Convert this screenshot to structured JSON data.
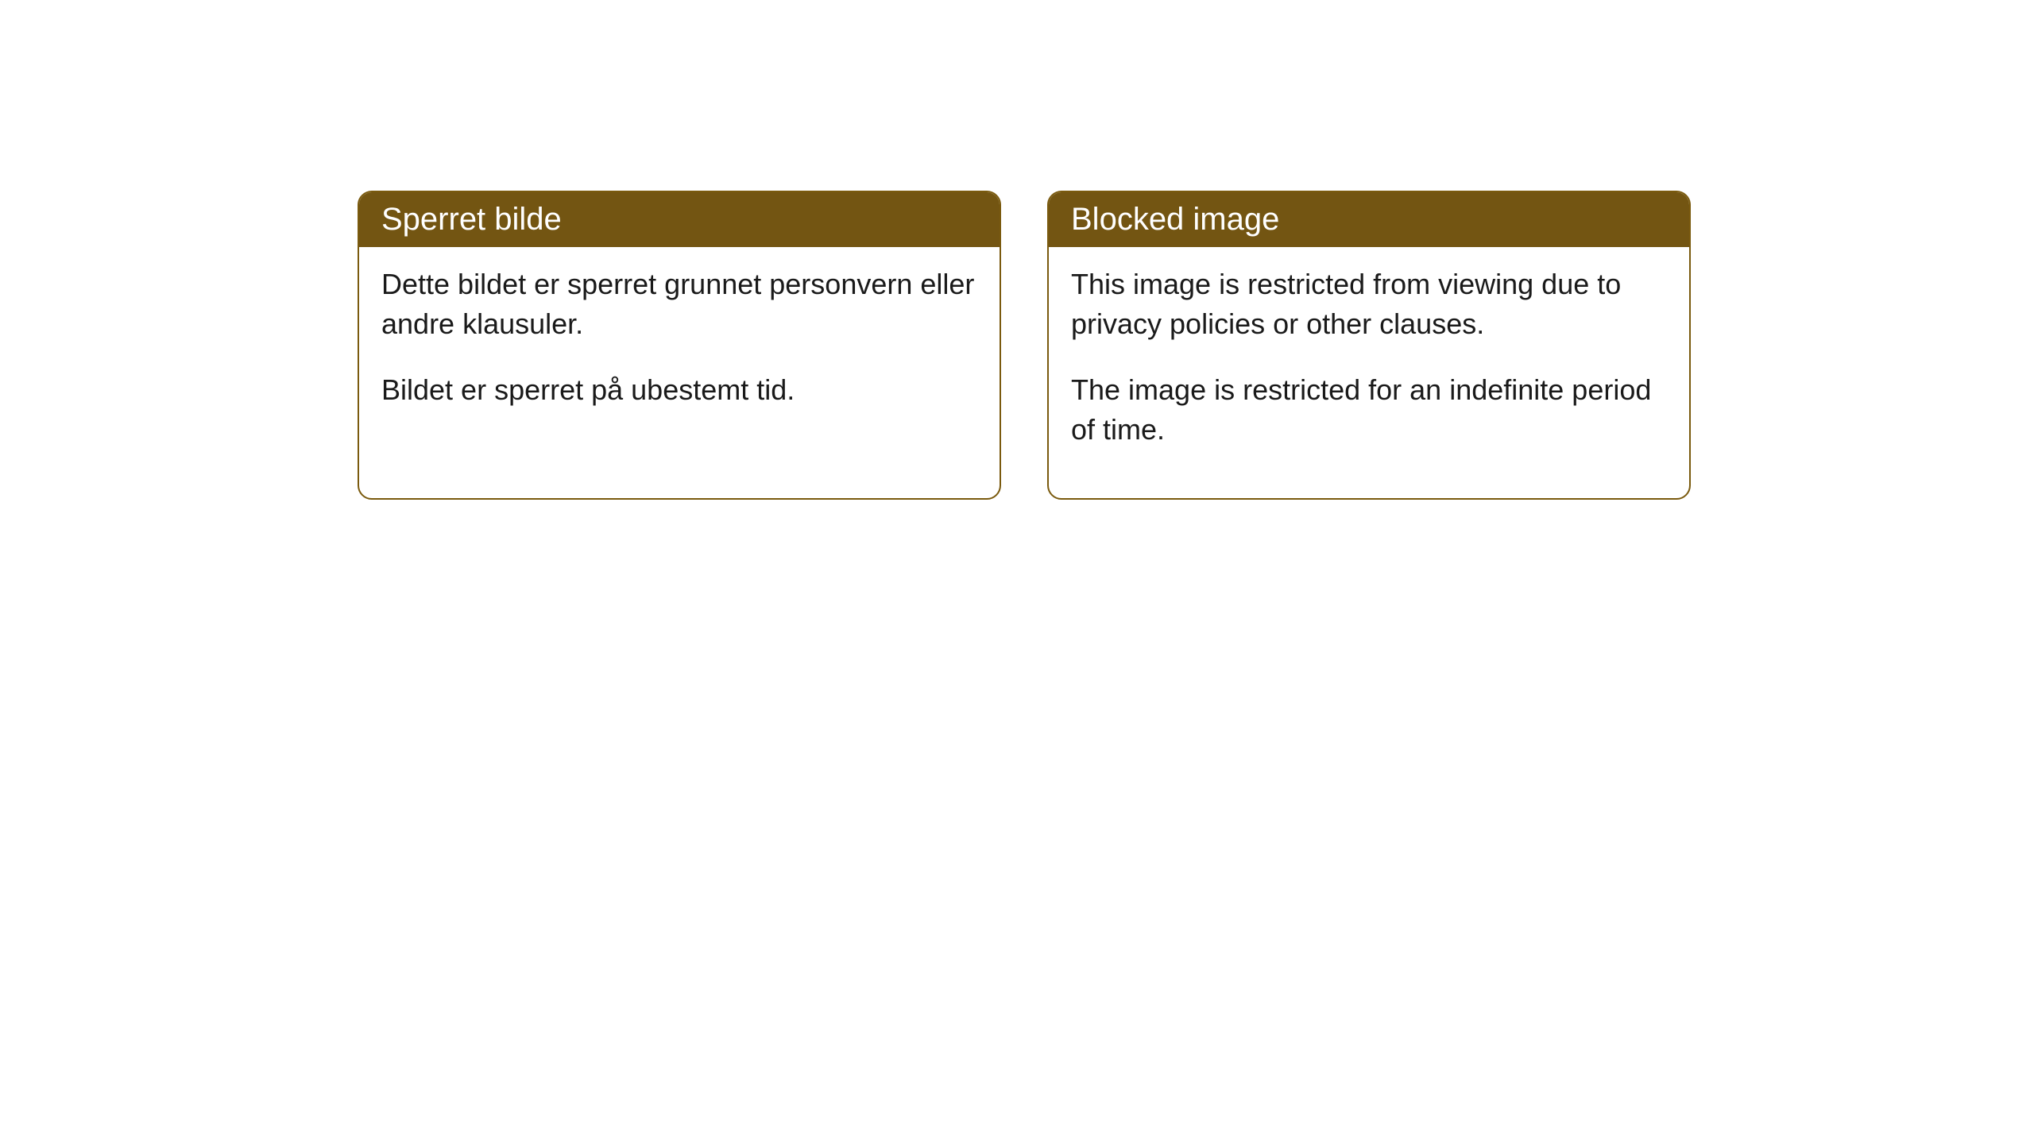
{
  "cards": {
    "norwegian": {
      "title": "Sperret bilde",
      "paragraph1": "Dette bildet er sperret grunnet personvern eller andre klausuler.",
      "paragraph2": "Bildet er sperret på ubestemt tid."
    },
    "english": {
      "title": "Blocked image",
      "paragraph1": "This image is restricted from viewing due to privacy policies or other clauses.",
      "paragraph2": "The image is restricted for an indefinite period of time."
    }
  },
  "styling": {
    "header_background": "#735512",
    "header_text_color": "#ffffff",
    "body_text_color": "#1a1a1a",
    "border_color": "#7a5a0e",
    "card_background": "#ffffff",
    "page_background": "#ffffff",
    "border_radius": 18,
    "header_fontsize": 40,
    "body_fontsize": 36
  }
}
